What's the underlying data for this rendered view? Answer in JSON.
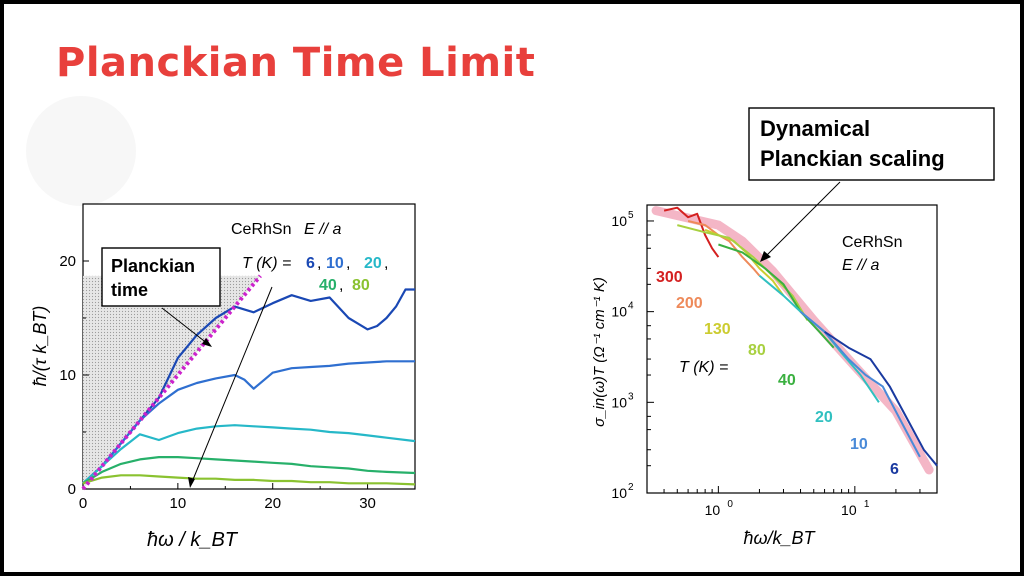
{
  "slide": {
    "title": "Planckian Time Limit"
  },
  "chart_data": [
    {
      "type": "line",
      "material_label": "CeRhSn",
      "orientation_label": "E // a",
      "temp_legend_prefix": "T (K) =",
      "xlabel": "ħω / k_BT",
      "ylabel": "ħ/(τ k_BT)",
      "xlim": [
        0,
        35
      ],
      "ylim": [
        0,
        25
      ],
      "xticks": [
        "0",
        "10",
        "20",
        "30"
      ],
      "yticks": [
        "0",
        "10",
        "20"
      ],
      "limit_line": {
        "name": "Planckian time",
        "slope": 1,
        "color": "#cc22cc"
      },
      "callout": "Planckian time",
      "series": [
        {
          "name": "6",
          "color": "#1a48b4",
          "x": [
            0,
            2,
            4,
            6,
            8,
            10,
            12,
            14,
            16,
            18,
            20,
            22,
            24,
            26,
            28,
            29,
            30,
            31,
            32,
            33,
            34,
            35
          ],
          "y": [
            0.5,
            2,
            4,
            6,
            8,
            11.5,
            13.5,
            15,
            16,
            15.5,
            16.3,
            17,
            16.5,
            16.8,
            15,
            14.5,
            14,
            14.3,
            15,
            16,
            17.5,
            17.5
          ]
        },
        {
          "name": "10",
          "color": "#2f6fd0",
          "x": [
            0,
            2,
            4,
            6,
            8,
            10,
            12,
            14,
            16,
            17,
            18,
            19,
            20,
            22,
            24,
            26,
            28,
            30,
            32,
            35
          ],
          "y": [
            0.5,
            2,
            4,
            6,
            7.5,
            8.7,
            9.3,
            9.7,
            10,
            9.6,
            8.8,
            9.5,
            10.2,
            10.6,
            10.7,
            10.8,
            11,
            11.1,
            11.2,
            11.2
          ]
        },
        {
          "name": "20",
          "color": "#26b8c8",
          "x": [
            0,
            2,
            4,
            6,
            8,
            10,
            12,
            14,
            16,
            18,
            20,
            22,
            24,
            26,
            28,
            30,
            32,
            35
          ],
          "y": [
            0.5,
            2,
            3.5,
            4.8,
            4.3,
            4.9,
            5.3,
            5.5,
            5.6,
            5.5,
            5.4,
            5.3,
            5.2,
            5,
            4.9,
            4.7,
            4.5,
            4.2
          ]
        },
        {
          "name": "40",
          "color": "#27b06a",
          "x": [
            0,
            2,
            4,
            6,
            8,
            10,
            12,
            14,
            16,
            18,
            20,
            22,
            24,
            26,
            28,
            30,
            32,
            35
          ],
          "y": [
            0.5,
            1.5,
            2.2,
            2.6,
            2.8,
            2.8,
            2.7,
            2.6,
            2.5,
            2.4,
            2.3,
            2.2,
            2,
            1.9,
            1.8,
            1.6,
            1.5,
            1.4
          ]
        },
        {
          "name": "80",
          "color": "#8ac230",
          "x": [
            0,
            2,
            4,
            6,
            8,
            10,
            12,
            14,
            16,
            18,
            20,
            22,
            24,
            26,
            28,
            30,
            32,
            35
          ],
          "y": [
            0.5,
            1,
            1.2,
            1.2,
            1.1,
            1,
            0.9,
            0.9,
            0.8,
            0.8,
            0.7,
            0.7,
            0.6,
            0.6,
            0.5,
            0.5,
            0.5,
            0.4
          ]
        }
      ]
    },
    {
      "type": "line",
      "material_label": "CeRhSn",
      "orientation_label": "E // a",
      "temp_legend_prefix": "T (K) =",
      "xlabel": "ħω/k_BT",
      "ylabel": "σ_in(ω)T (Ω⁻¹ cm⁻¹ K)",
      "x_scale": "log",
      "y_scale": "log",
      "xlim": [
        0.3,
        40
      ],
      "ylim": [
        100,
        150000
      ],
      "xticks": [
        "10^0",
        "10^1"
      ],
      "yticks": [
        "10^2",
        "10^3",
        "10^4",
        "10^5"
      ],
      "scaling_band": {
        "name": "Dynamical Planckian scaling",
        "color": "#f4b6c6"
      },
      "callout": "Dynamical Planckian scaling",
      "series": [
        {
          "name": "300",
          "color": "#d42020",
          "x": [
            0.4,
            0.5,
            0.6,
            0.7,
            0.8,
            0.9,
            1.0
          ],
          "y": [
            130000,
            140000,
            110000,
            120000,
            70000,
            50000,
            40000
          ]
        },
        {
          "name": "200",
          "color": "#ee8a5a",
          "x": [
            0.6,
            0.8,
            1,
            1.2,
            1.5,
            1.8,
            2.0
          ],
          "y": [
            100000,
            90000,
            70000,
            60000,
            40000,
            30000,
            25000
          ]
        },
        {
          "name": "130",
          "color": "#cccc30",
          "x": [
            0.8,
            1,
            1.3,
            1.6,
            2,
            2.5,
            3
          ],
          "y": [
            80000,
            70000,
            60000,
            45000,
            30000,
            22000,
            15000
          ]
        },
        {
          "name": "80",
          "color": "#a8d040",
          "x": [
            0.5,
            0.8,
            1.2,
            1.8,
            2.5,
            3.5,
            4.5
          ],
          "y": [
            90000,
            75000,
            65000,
            40000,
            25000,
            15000,
            8000
          ]
        },
        {
          "name": "40",
          "color": "#3ab040",
          "x": [
            1,
            1.5,
            2.2,
            3,
            4,
            5.5,
            7
          ],
          "y": [
            55000,
            45000,
            30000,
            20000,
            10000,
            6000,
            4000
          ]
        },
        {
          "name": "20",
          "color": "#30c0c0",
          "x": [
            2,
            3,
            4,
            6,
            8,
            11,
            15
          ],
          "y": [
            25000,
            15000,
            10000,
            6000,
            3500,
            2000,
            1000
          ]
        },
        {
          "name": "10",
          "color": "#4a8ad8",
          "x": [
            4,
            6,
            9,
            12,
            16,
            22,
            30
          ],
          "y": [
            10000,
            6000,
            3000,
            2000,
            1500,
            600,
            250
          ]
        },
        {
          "name": "6",
          "color": "#1a3aa0",
          "x": [
            6,
            9,
            13,
            18,
            25,
            32,
            40
          ],
          "y": [
            6000,
            4000,
            3000,
            1500,
            600,
            300,
            200
          ]
        }
      ]
    }
  ]
}
